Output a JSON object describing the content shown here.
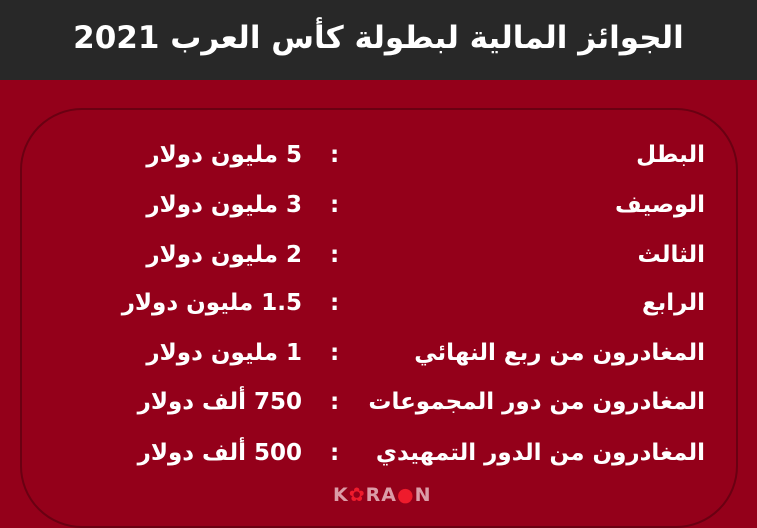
{
  "title": "الجوائز المالية لبطولة كأس العرب 2021",
  "separator": ":",
  "rows": [
    {
      "label": "البطل",
      "value": "5 مليون دولار"
    },
    {
      "label": "الوصيف",
      "value": "3 مليون دولار"
    },
    {
      "label": "الثالث",
      "value": "2 مليون دولار"
    },
    {
      "label": "الرابع",
      "value": "1.5 مليون دولار"
    },
    {
      "label": "المغادرون من ربع النهائي",
      "value": "1 مليون دولار"
    },
    {
      "label": "المغادرون من دور المجموعات",
      "value": "750 ألف دولار"
    },
    {
      "label": "المغادرون من الدور التمهيدي",
      "value": "500 ألف دولار"
    }
  ],
  "watermark": "KORAON",
  "colors": {
    "background": "#94001a",
    "header": "#282828",
    "text": "#ffffff"
  }
}
